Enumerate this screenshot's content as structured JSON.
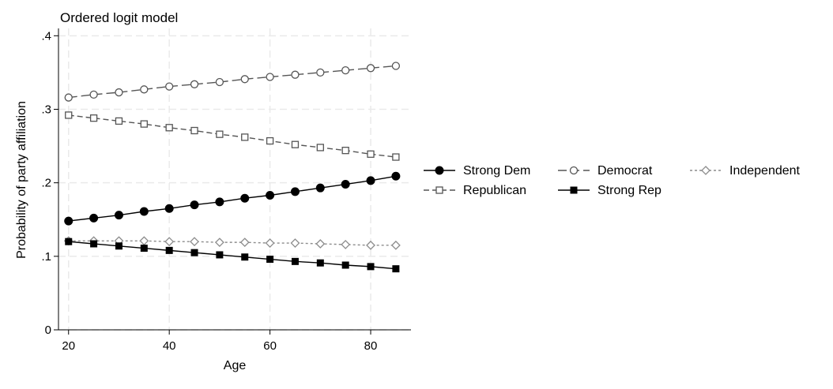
{
  "chart_data": {
    "type": "line",
    "title": "Ordered logit model",
    "xlabel": "Age",
    "ylabel": "Probability of party affiliation",
    "xlim": [
      18,
      88
    ],
    "ylim": [
      0,
      0.41
    ],
    "x_ticks": [
      20,
      40,
      60,
      80
    ],
    "x_tick_labels": [
      "20",
      "40",
      "60",
      "80"
    ],
    "y_ticks": [
      0,
      0.1,
      0.2,
      0.3,
      0.4
    ],
    "y_tick_labels": [
      "0",
      ".1",
      ".2",
      ".3",
      ".4"
    ],
    "grid": true,
    "legend_position": "right",
    "x": [
      20,
      25,
      30,
      35,
      40,
      45,
      50,
      55,
      60,
      65,
      70,
      75,
      80,
      85
    ],
    "series": [
      {
        "name": "Strong Dem",
        "marker": "circle-filled",
        "line_style": "solid",
        "color": "#000000",
        "values": [
          0.148,
          0.152,
          0.156,
          0.161,
          0.165,
          0.17,
          0.174,
          0.179,
          0.183,
          0.188,
          0.193,
          0.198,
          0.203,
          0.209
        ]
      },
      {
        "name": "Democrat",
        "marker": "circle-hollow",
        "line_style": "long-dash",
        "color": "#555555",
        "values": [
          0.316,
          0.32,
          0.323,
          0.327,
          0.331,
          0.334,
          0.337,
          0.341,
          0.344,
          0.347,
          0.35,
          0.353,
          0.356,
          0.359
        ]
      },
      {
        "name": "Independent",
        "marker": "diamond-hollow",
        "line_style": "dotted",
        "color": "#8c8c8c",
        "values": [
          0.121,
          0.121,
          0.121,
          0.121,
          0.12,
          0.12,
          0.119,
          0.119,
          0.118,
          0.118,
          0.117,
          0.116,
          0.115,
          0.115
        ]
      },
      {
        "name": "Republican",
        "marker": "square-hollow",
        "line_style": "short-dash",
        "color": "#555555",
        "values": [
          0.292,
          0.288,
          0.284,
          0.28,
          0.275,
          0.271,
          0.266,
          0.262,
          0.257,
          0.252,
          0.248,
          0.244,
          0.239,
          0.235
        ]
      },
      {
        "name": "Strong Rep",
        "marker": "square-filled",
        "line_style": "solid",
        "color": "#000000",
        "values": [
          0.12,
          0.117,
          0.114,
          0.111,
          0.108,
          0.105,
          0.102,
          0.099,
          0.096,
          0.093,
          0.091,
          0.088,
          0.086,
          0.083
        ]
      }
    ],
    "legend_order": [
      "Strong Dem",
      "Democrat",
      "Independent",
      "Republican",
      "Strong Rep"
    ]
  }
}
